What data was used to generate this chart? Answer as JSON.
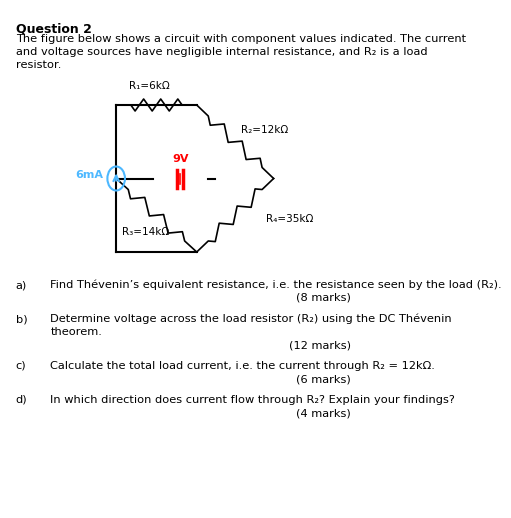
{
  "title": "Question 2",
  "intro": "The figure below shows a circuit with component values indicated. The current\nand voltage sources have negligible internal resistance, and R₂ is a load\nresistor.",
  "background_color": "#ffffff",
  "circuit": {
    "R1_label": "R₁=6kΩ",
    "R2_label": "R₂=12kΩ",
    "R3_label": "R₃=14kΩ",
    "R4_label": "R₄=35kΩ",
    "V_label": "9V",
    "I_label": "6mA"
  },
  "questions": [
    {
      "letter": "a)",
      "text": "Find Thévenin’s equivalent resistance, i.e. the resistance seen by the load (R₂).",
      "marks": "(8 marks)"
    },
    {
      "letter": "b)",
      "text": "Determine voltage across the load resistor (R₂) using the DC Thévenin\ntheorem.",
      "marks": "(12 marks)"
    },
    {
      "letter": "c)",
      "text": "Calculate the total load current, i.e. the current through R₂ = 12kΩ.",
      "marks": "(6 marks)"
    },
    {
      "letter": "d)",
      "text": "In which direction does current flow through R₂? Explain your findings?",
      "marks": "(4 marks)"
    }
  ]
}
